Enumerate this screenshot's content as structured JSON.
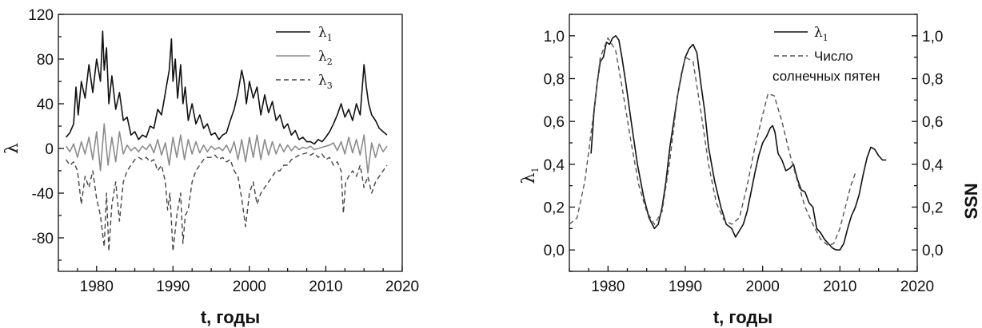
{
  "chart_data": [
    {
      "type": "line",
      "xlabel": "t, годы",
      "ylabel": "λ",
      "xlim": [
        1975,
        2020
      ],
      "ylim": [
        -110,
        120
      ],
      "xticks": [
        1980,
        1990,
        2000,
        2010,
        2020
      ],
      "yticks": [
        -80,
        -40,
        0,
        40,
        80,
        120
      ],
      "legend_position": "top-right",
      "series": [
        {
          "name": "λ1",
          "name_base": "λ",
          "name_sub": "1",
          "color": "#111111",
          "style": "solid",
          "x": [
            1976,
            1976.5,
            1977,
            1977.3,
            1977.6,
            1978,
            1978.5,
            1979,
            1979.5,
            1980,
            1980.5,
            1980.8,
            1981,
            1981.3,
            1981.6,
            1982,
            1982.5,
            1983,
            1983.5,
            1984,
            1984.5,
            1985,
            1985.5,
            1986,
            1986.5,
            1987,
            1987.5,
            1988,
            1988.5,
            1989,
            1989.5,
            1989.8,
            1990,
            1990.3,
            1990.6,
            1991,
            1991.3,
            1991.6,
            1992,
            1992.5,
            1993,
            1993.5,
            1994,
            1994.5,
            1995,
            1995.5,
            1996,
            1996.5,
            1997,
            1997.5,
            1998,
            1998.5,
            1999,
            1999.3,
            1999.6,
            2000,
            2000.5,
            2001,
            2001.5,
            2002,
            2002.5,
            2003,
            2003.5,
            2004,
            2004.5,
            2005,
            2005.5,
            2006,
            2006.5,
            2007,
            2007.5,
            2008,
            2008.5,
            2009,
            2009.5,
            2010,
            2010.5,
            2011,
            2011.5,
            2012,
            2012.5,
            2013,
            2013.5,
            2014,
            2014.5,
            2015,
            2015.3,
            2015.6,
            2016,
            2016.5,
            2017,
            2017.5,
            2018
          ],
          "values": [
            10,
            14,
            22,
            55,
            30,
            60,
            45,
            75,
            50,
            80,
            60,
            105,
            70,
            90,
            40,
            65,
            35,
            50,
            25,
            28,
            12,
            15,
            8,
            12,
            10,
            20,
            18,
            35,
            30,
            50,
            70,
            98,
            60,
            80,
            45,
            75,
            40,
            55,
            25,
            40,
            22,
            30,
            18,
            22,
            12,
            14,
            8,
            12,
            14,
            25,
            35,
            50,
            70,
            60,
            40,
            60,
            45,
            55,
            30,
            48,
            32,
            42,
            25,
            30,
            18,
            22,
            12,
            16,
            8,
            10,
            6,
            6,
            4,
            8,
            6,
            10,
            15,
            22,
            30,
            40,
            28,
            35,
            25,
            40,
            30,
            75,
            55,
            40,
            30,
            25,
            18,
            15,
            12
          ]
        },
        {
          "name": "λ2",
          "name_base": "λ",
          "name_sub": "2",
          "color": "#8c8c8c",
          "style": "solid",
          "x": [
            1976,
            1976.5,
            1977,
            1977.5,
            1978,
            1978.5,
            1979,
            1979.5,
            1980,
            1980.5,
            1981,
            1981.5,
            1982,
            1982.5,
            1983,
            1983.5,
            1984,
            1984.5,
            1985,
            1985.5,
            1986,
            1986.5,
            1987,
            1987.5,
            1988,
            1988.5,
            1989,
            1989.5,
            1990,
            1990.5,
            1991,
            1991.5,
            1992,
            1992.5,
            1993,
            1993.5,
            1994,
            1994.5,
            1995,
            1995.5,
            1996,
            1996.5,
            1997,
            1997.5,
            1998,
            1998.5,
            1999,
            1999.5,
            2000,
            2000.5,
            2001,
            2001.5,
            2002,
            2002.5,
            2003,
            2003.5,
            2004,
            2004.5,
            2005,
            2005.5,
            2006,
            2006.5,
            2007,
            2007.5,
            2008,
            2008.5,
            2009,
            2009.5,
            2010,
            2010.5,
            2011,
            2011.5,
            2012,
            2012.5,
            2013,
            2013.5,
            2014,
            2014.5,
            2015,
            2015.5,
            2016,
            2016.5,
            2017,
            2017.5,
            2018
          ],
          "values": [
            2,
            -3,
            4,
            -8,
            6,
            -5,
            10,
            -10,
            15,
            -20,
            22,
            -15,
            10,
            -12,
            15,
            -5,
            3,
            -2,
            1,
            -3,
            2,
            -1,
            4,
            -4,
            8,
            -6,
            5,
            -15,
            10,
            -8,
            12,
            -10,
            8,
            -5,
            6,
            -4,
            3,
            -3,
            2,
            -1,
            1,
            -2,
            3,
            -4,
            6,
            -10,
            8,
            -12,
            10,
            -8,
            12,
            -10,
            8,
            -6,
            6,
            -5,
            4,
            -3,
            3,
            -2,
            2,
            -1,
            1,
            0,
            2,
            -1,
            0,
            1,
            2,
            3,
            5,
            -2,
            6,
            -5,
            10,
            -4,
            8,
            -6,
            12,
            -22,
            5,
            -8,
            4,
            -3,
            2
          ]
        },
        {
          "name": "λ3",
          "name_base": "λ",
          "name_sub": "3",
          "color": "#444444",
          "style": "dashed",
          "x": [
            1976,
            1976.5,
            1977,
            1977.5,
            1978,
            1978.5,
            1979,
            1979.5,
            1980,
            1980.5,
            1981,
            1981.3,
            1981.6,
            1982,
            1982.5,
            1983,
            1983.5,
            1984,
            1984.5,
            1985,
            1985.5,
            1986,
            1986.5,
            1987,
            1987.5,
            1988,
            1988.5,
            1989,
            1989.3,
            1989.6,
            1990,
            1990.5,
            1991,
            1991.3,
            1991.6,
            1992,
            1992.5,
            1993,
            1993.5,
            1994,
            1994.5,
            1995,
            1995.5,
            1996,
            1996.5,
            1997,
            1997.5,
            1998,
            1998.5,
            1999,
            1999.5,
            2000,
            2000.5,
            2001,
            2001.5,
            2002,
            2002.5,
            2003,
            2003.5,
            2004,
            2004.5,
            2005,
            2005.5,
            2006,
            2006.5,
            2007,
            2007.5,
            2008,
            2008.5,
            2009,
            2009.5,
            2010,
            2010.5,
            2011,
            2011.5,
            2012,
            2012.3,
            2012.6,
            2013,
            2013.5,
            2014,
            2014.5,
            2015,
            2015.5,
            2016,
            2016.5,
            2017,
            2017.5,
            2018
          ],
          "values": [
            -10,
            -15,
            -12,
            -20,
            -50,
            -25,
            -35,
            -20,
            -45,
            -60,
            -88,
            -40,
            -92,
            -50,
            -30,
            -65,
            -30,
            -20,
            -15,
            -10,
            -8,
            -10,
            -8,
            -12,
            -10,
            -20,
            -15,
            -30,
            -55,
            -40,
            -92,
            -60,
            -40,
            -85,
            -60,
            -55,
            -30,
            -20,
            -15,
            -10,
            -8,
            -8,
            -6,
            -10,
            -8,
            -12,
            -10,
            -20,
            -25,
            -45,
            -70,
            -40,
            -30,
            -50,
            -40,
            -35,
            -30,
            -25,
            -20,
            -20,
            -15,
            -15,
            -10,
            -8,
            -6,
            -5,
            -4,
            -6,
            -4,
            -8,
            -5,
            -10,
            -8,
            -15,
            -12,
            -20,
            -58,
            -30,
            -25,
            -20,
            -25,
            -15,
            -35,
            -25,
            -40,
            -30,
            -25,
            -20,
            -15
          ]
        }
      ]
    },
    {
      "type": "line",
      "xlabel": "t, годы",
      "ylabel": "λ1",
      "ylabel_base": "λ",
      "ylabel_sub": "1",
      "ylabel_right": "SSN",
      "xlim": [
        1975,
        2020
      ],
      "ylim": [
        -0.1,
        1.1
      ],
      "xticks": [
        1980,
        1990,
        2000,
        2010,
        2020
      ],
      "yticks": [
        0.0,
        0.2,
        0.4,
        0.6,
        0.8,
        1.0
      ],
      "ytick_labels": [
        "0,0",
        "0,2",
        "0,4",
        "0,6",
        "0,8",
        "1,0"
      ],
      "legend_position": "top-right",
      "series": [
        {
          "name": "λ1",
          "name_base": "λ",
          "name_sub": "1",
          "color": "#111111",
          "style": "solid",
          "x": [
            1977.8,
            1978.2,
            1978.6,
            1979,
            1979.4,
            1979.8,
            1980.2,
            1980.6,
            1981,
            1981.4,
            1981.8,
            1982.3,
            1983,
            1983.8,
            1984.6,
            1985.3,
            1986,
            1986.5,
            1987,
            1987.5,
            1988,
            1988.5,
            1989,
            1989.5,
            1990,
            1990.5,
            1991,
            1991.5,
            1992,
            1992.5,
            1993,
            1993.8,
            1994.6,
            1995.3,
            1996,
            1996.5,
            1997,
            1997.5,
            1998,
            1998.5,
            1999,
            1999.5,
            2000,
            2000.5,
            2001,
            2001.3,
            2001.6,
            2002,
            2002.5,
            2003,
            2003.5,
            2004,
            2004.5,
            2005,
            2005.5,
            2006,
            2006.5,
            2007,
            2007.5,
            2008,
            2008.5,
            2009,
            2009.5,
            2010,
            2010.5,
            2011,
            2011.5,
            2012,
            2012.5,
            2013,
            2013.5,
            2014,
            2014.5,
            2015,
            2015.5,
            2016
          ],
          "values": [
            0.45,
            0.65,
            0.78,
            0.88,
            0.9,
            0.97,
            0.96,
            0.99,
            1.0,
            0.98,
            0.9,
            0.78,
            0.6,
            0.4,
            0.25,
            0.15,
            0.1,
            0.12,
            0.2,
            0.32,
            0.48,
            0.6,
            0.72,
            0.82,
            0.9,
            0.94,
            0.96,
            0.92,
            0.78,
            0.65,
            0.48,
            0.32,
            0.2,
            0.12,
            0.1,
            0.06,
            0.09,
            0.12,
            0.18,
            0.27,
            0.36,
            0.44,
            0.5,
            0.53,
            0.57,
            0.58,
            0.55,
            0.45,
            0.42,
            0.37,
            0.38,
            0.4,
            0.33,
            0.28,
            0.27,
            0.22,
            0.2,
            0.1,
            0.08,
            0.05,
            0.03,
            0.01,
            0.0,
            0.0,
            0.03,
            0.1,
            0.16,
            0.2,
            0.26,
            0.35,
            0.43,
            0.48,
            0.47,
            0.44,
            0.42,
            0.42
          ]
        },
        {
          "name": "Число солнечных пятен",
          "legend_lines": [
            "Число",
            "солнечных пятен"
          ],
          "color": "#555555",
          "style": "dashed",
          "x": [
            1975,
            1976,
            1977,
            1978,
            1979,
            1980,
            1981,
            1982,
            1983,
            1984,
            1985,
            1986,
            1987,
            1988,
            1989,
            1990,
            1991,
            1992,
            1993,
            1994,
            1995,
            1996,
            1997,
            1998,
            1999,
            2000,
            2000.7,
            2001.5,
            2002.5,
            2003.5,
            2004.5,
            2005.5,
            2006.5,
            2007.5,
            2008.5,
            2009.2,
            2010,
            2010.7,
            2011.4,
            2012
          ],
          "values": [
            0.12,
            0.15,
            0.32,
            0.6,
            0.9,
            0.99,
            0.93,
            0.72,
            0.5,
            0.3,
            0.18,
            0.12,
            0.18,
            0.42,
            0.72,
            0.9,
            0.88,
            0.65,
            0.4,
            0.22,
            0.14,
            0.12,
            0.15,
            0.3,
            0.48,
            0.63,
            0.73,
            0.72,
            0.6,
            0.45,
            0.32,
            0.2,
            0.12,
            0.05,
            0.02,
            0.03,
            0.1,
            0.2,
            0.3,
            0.36
          ]
        }
      ]
    }
  ]
}
